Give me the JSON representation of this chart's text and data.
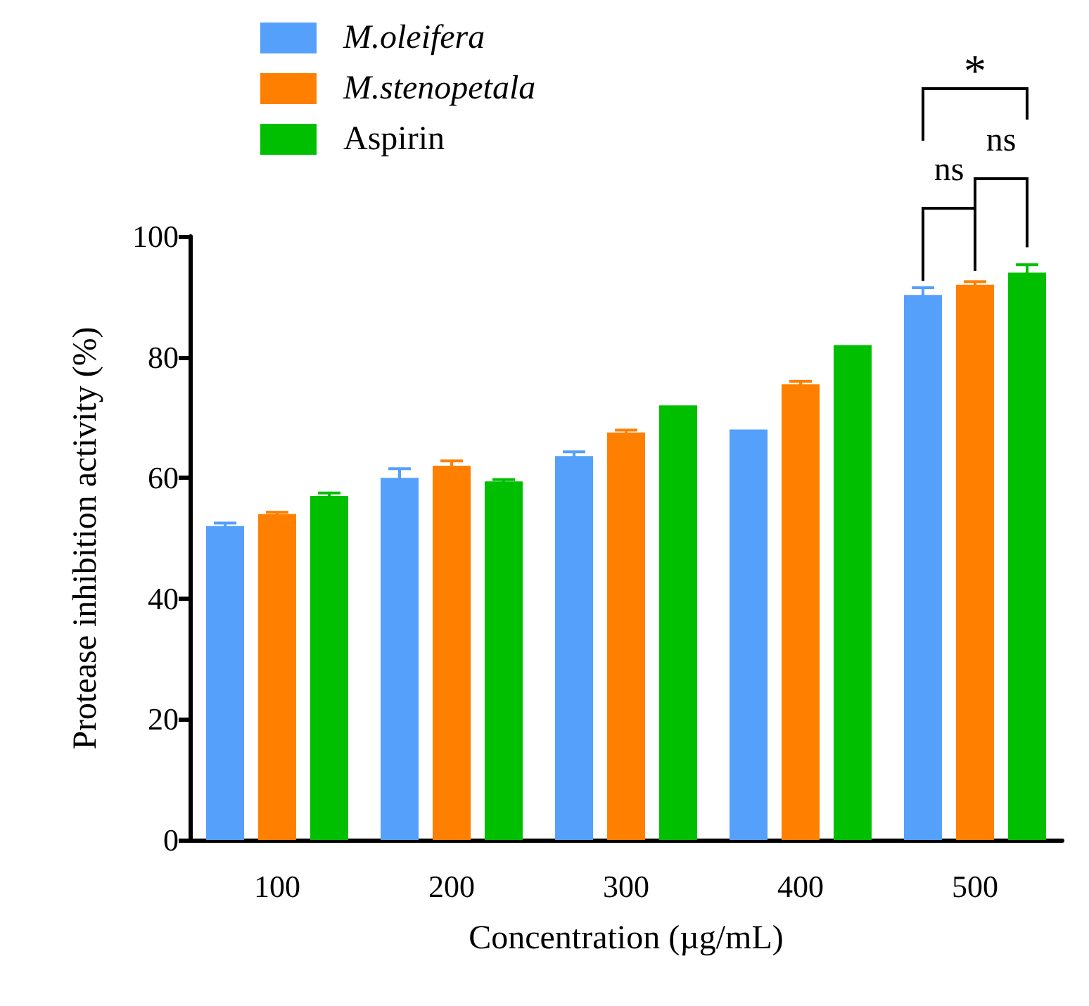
{
  "chart_data": {
    "type": "bar",
    "xlabel": "Concentration (µg/mL)",
    "ylabel": "Protease inhibition activity (%)",
    "categories": [
      "100",
      "200",
      "300",
      "400",
      "500"
    ],
    "series": [
      {
        "name": "M.oleifera",
        "color": "#55a0fb",
        "values": [
          52,
          60,
          63.6,
          68,
          90.3
        ],
        "errors": [
          0.5,
          1.5,
          0.7,
          null,
          1.2
        ]
      },
      {
        "name": "M.stenopetala",
        "color": "#ff8000",
        "values": [
          54,
          62,
          67.5,
          75.5,
          92
        ],
        "errors": [
          0.3,
          0.8,
          0.4,
          0.5,
          0.5
        ]
      },
      {
        "name": "Aspirin",
        "color": "#00bf00",
        "values": [
          57,
          59.4,
          72,
          82,
          94
        ],
        "errors": [
          0.5,
          0.3,
          null,
          null,
          1.3
        ]
      }
    ],
    "ylim": [
      0,
      100
    ],
    "yticks": [
      0,
      20,
      40,
      60,
      80,
      100
    ],
    "grid": false,
    "legend": "top left",
    "annotations": [
      "ns",
      "ns",
      "*"
    ]
  }
}
